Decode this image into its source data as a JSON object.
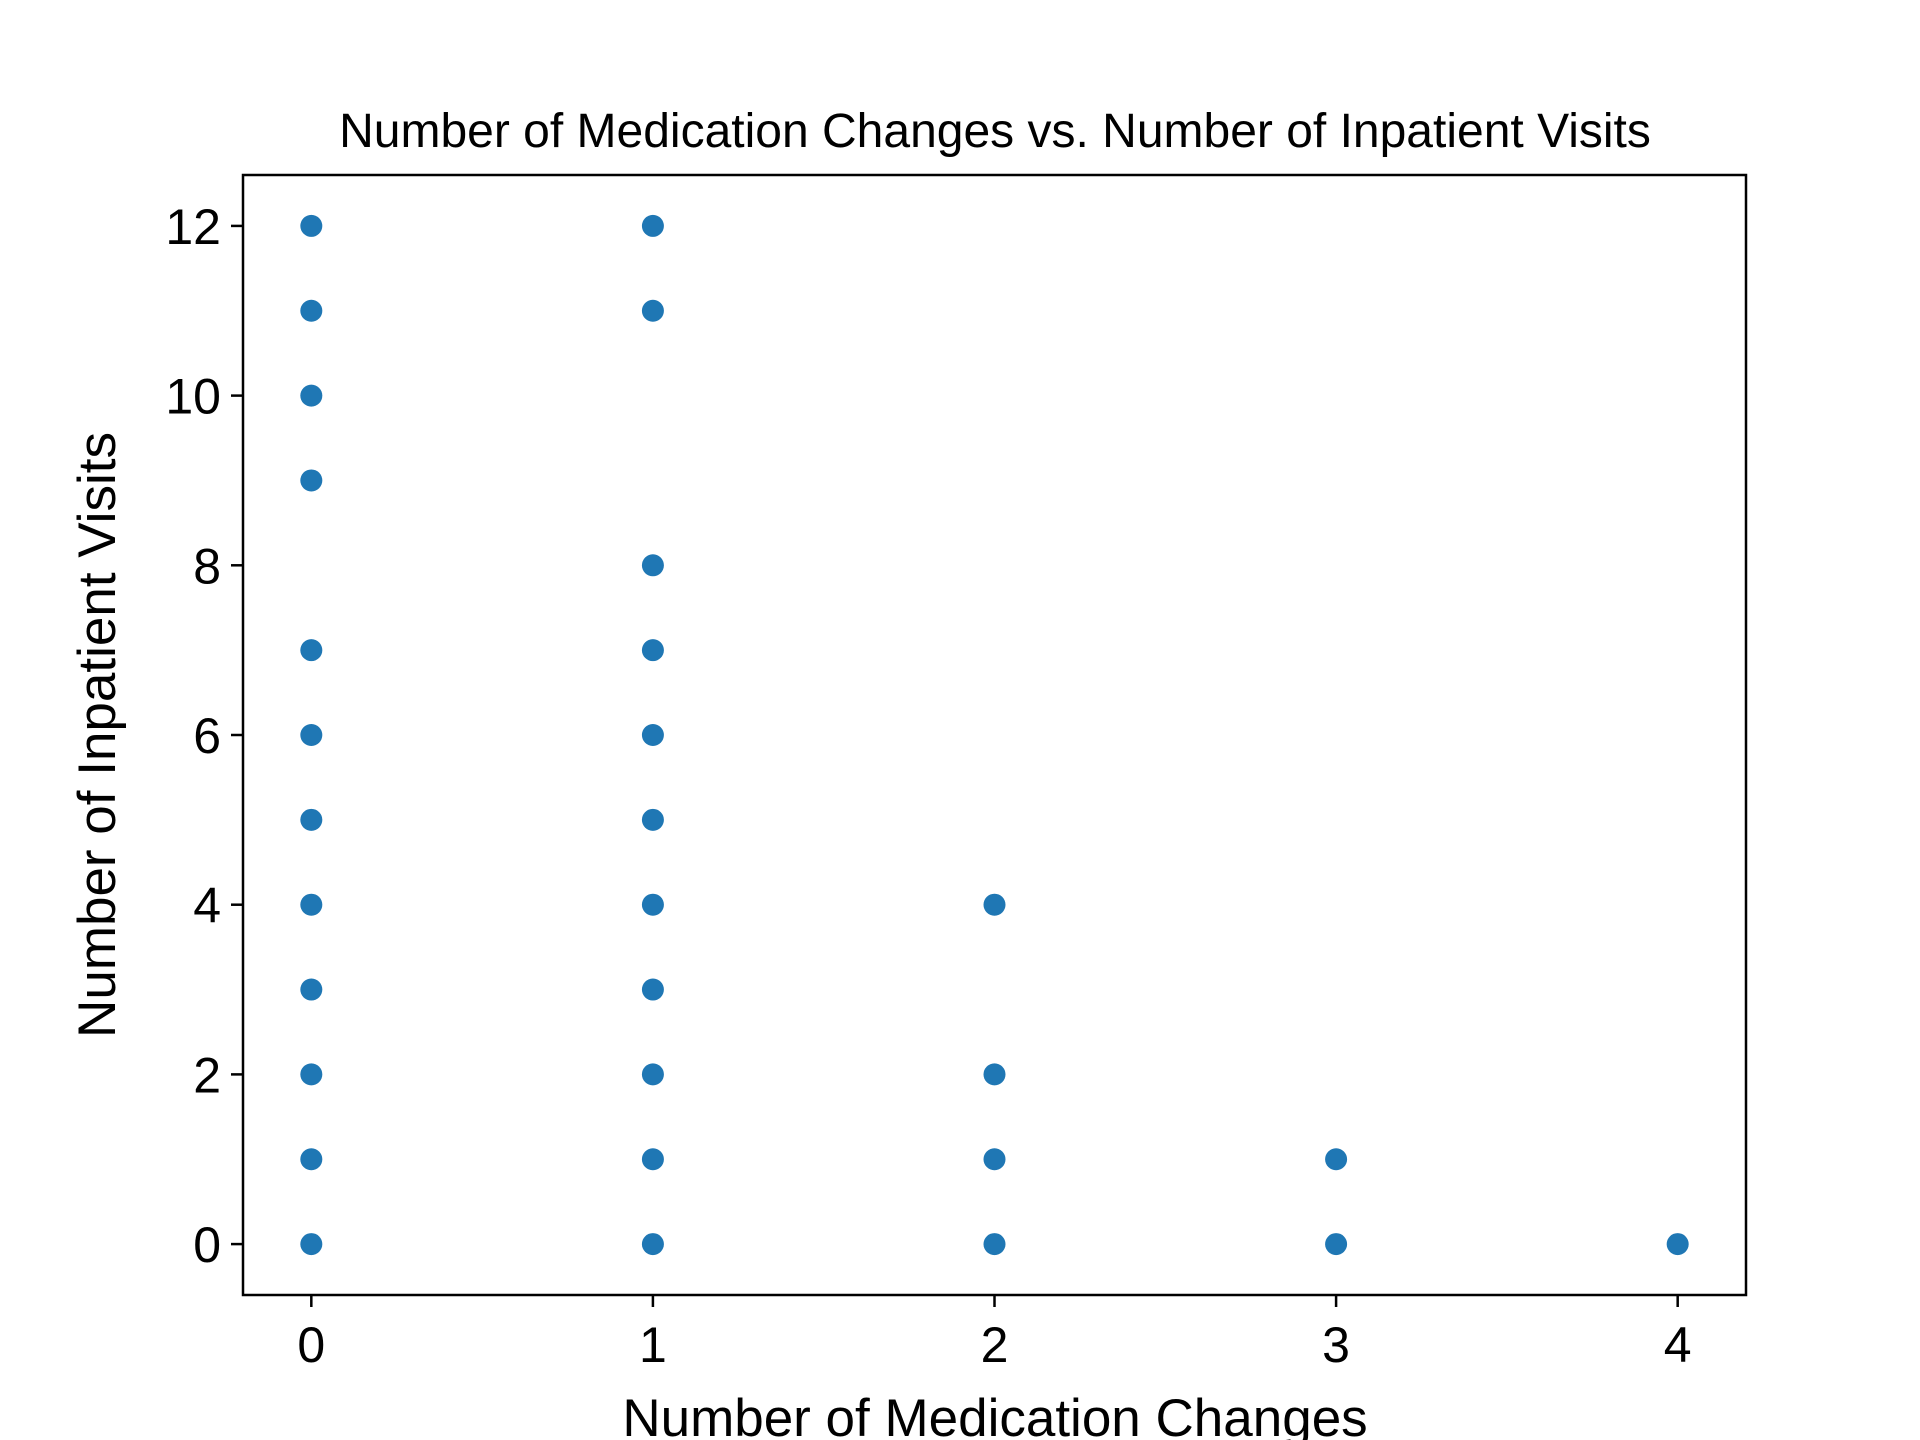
{
  "chart_data": {
    "type": "scatter",
    "title": "Number of Medication Changes vs. Number of Inpatient Visits",
    "xlabel": "Number of Medication Changes",
    "ylabel": "Number of Inpatient Visits",
    "xlim": [
      -0.2,
      4.2
    ],
    "ylim": [
      -0.6,
      12.6
    ],
    "xticks": [
      0,
      1,
      2,
      3,
      4
    ],
    "yticks": [
      0,
      2,
      4,
      6,
      8,
      10,
      12
    ],
    "grid": false,
    "marker_color": "#1f77b4",
    "points": [
      {
        "x": 0,
        "y": 12
      },
      {
        "x": 0,
        "y": 11
      },
      {
        "x": 0,
        "y": 10
      },
      {
        "x": 0,
        "y": 9
      },
      {
        "x": 0,
        "y": 7
      },
      {
        "x": 0,
        "y": 6
      },
      {
        "x": 0,
        "y": 5
      },
      {
        "x": 0,
        "y": 4
      },
      {
        "x": 0,
        "y": 3
      },
      {
        "x": 0,
        "y": 2
      },
      {
        "x": 0,
        "y": 1
      },
      {
        "x": 0,
        "y": 0
      },
      {
        "x": 1,
        "y": 12
      },
      {
        "x": 1,
        "y": 11
      },
      {
        "x": 1,
        "y": 8
      },
      {
        "x": 1,
        "y": 7
      },
      {
        "x": 1,
        "y": 6
      },
      {
        "x": 1,
        "y": 5
      },
      {
        "x": 1,
        "y": 4
      },
      {
        "x": 1,
        "y": 3
      },
      {
        "x": 1,
        "y": 2
      },
      {
        "x": 1,
        "y": 1
      },
      {
        "x": 1,
        "y": 0
      },
      {
        "x": 2,
        "y": 4
      },
      {
        "x": 2,
        "y": 2
      },
      {
        "x": 2,
        "y": 1
      },
      {
        "x": 2,
        "y": 0
      },
      {
        "x": 3,
        "y": 1
      },
      {
        "x": 3,
        "y": 0
      },
      {
        "x": 4,
        "y": 0
      }
    ]
  }
}
